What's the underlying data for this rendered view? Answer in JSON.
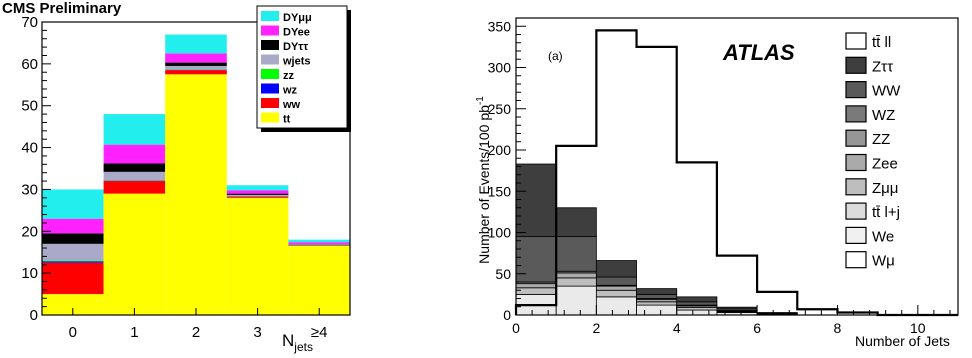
{
  "chart_data": [
    {
      "type": "bar",
      "stacked": true,
      "title": "CMS Preliminary",
      "xlabel": "N_jets",
      "xlabel_main": "N",
      "xlabel_sub": "jets",
      "ylabel": "",
      "ylim": [
        0,
        70
      ],
      "yticks": [
        0,
        10,
        20,
        30,
        40,
        50,
        60,
        70
      ],
      "categories": [
        "0",
        "1",
        "2",
        "3",
        "≥4"
      ],
      "series": [
        {
          "name": "tt",
          "color": "#ffff00",
          "values": [
            5,
            29,
            57.5,
            28,
            16.5
          ]
        },
        {
          "name": "WW",
          "color": "#ff0000",
          "values": [
            7.5,
            3,
            1,
            0.3,
            0.1
          ]
        },
        {
          "name": "WZ",
          "color": "#0000ff",
          "values": [
            0.3,
            0.1,
            0.1,
            0.05,
            0.05
          ]
        },
        {
          "name": "ZZ",
          "color": "#00ff00",
          "values": [
            0.2,
            0.1,
            0.1,
            0.05,
            0.05
          ]
        },
        {
          "name": "wjets",
          "color": "#aaaac8",
          "values": [
            4,
            2,
            0.8,
            0.3,
            0.2
          ]
        },
        {
          "name": "DYττ",
          "color": "#000000",
          "values": [
            2.5,
            2,
            0.8,
            0.3,
            0.1
          ]
        },
        {
          "name": "DYee",
          "color": "#ff22ff",
          "values": [
            3.5,
            4.5,
            2.2,
            0.8,
            0.4
          ]
        },
        {
          "name": "DYμμ",
          "color": "#22eeee",
          "values": [
            7,
            7.3,
            4.5,
            1.2,
            0.6
          ]
        }
      ],
      "legend": {
        "placement": "top-right",
        "entries": [
          {
            "label": "DYμμ",
            "color": "#22eeee"
          },
          {
            "label": "DYee",
            "color": "#ff22ff"
          },
          {
            "label": "DYττ",
            "color": "#000000"
          },
          {
            "label": "wjets",
            "color": "#aaaac8"
          },
          {
            "label": "zz",
            "color": "#00ff00"
          },
          {
            "label": "wz",
            "color": "#0000ff"
          },
          {
            "label": "ww",
            "color": "#ff0000"
          },
          {
            "label": "tt",
            "color": "#ffff00"
          }
        ]
      },
      "grid": false
    },
    {
      "type": "bar",
      "stacked": true,
      "title": "",
      "panel_label": "(a)",
      "experiment_label": "ATLAS",
      "xlabel": "Number of Jets",
      "ylabel": "Number of Events/100 pb⁻¹",
      "ylabel_main": "Number of Events/100 pb",
      "ylabel_sup": "-1",
      "xlim": [
        0,
        11
      ],
      "ylim": [
        0,
        360
      ],
      "xticks": [
        0,
        2,
        4,
        6,
        8,
        10
      ],
      "yticks": [
        0,
        50,
        100,
        150,
        200,
        250,
        300,
        350
      ],
      "bin_edges": [
        0,
        1,
        2,
        3,
        4,
        5,
        6,
        7,
        8,
        9,
        10,
        11
      ],
      "signal_series": {
        "name": "tt̄ ll",
        "values": [
          12,
          205,
          345,
          325,
          185,
          72,
          28,
          7,
          3,
          0,
          0
        ]
      },
      "background_series": [
        {
          "name": "tt̄ l+j",
          "color": "#eaeaea",
          "values": [
            25,
            35,
            22,
            12,
            6,
            3,
            1,
            0,
            0,
            0,
            0
          ]
        },
        {
          "name": "Zμμ",
          "color": "#bebebe",
          "values": [
            8,
            10,
            8,
            4,
            3,
            1,
            0,
            0,
            0,
            0,
            0
          ]
        },
        {
          "name": "Zee",
          "color": "#aaaaaa",
          "values": [
            5,
            6,
            5,
            3,
            2,
            1,
            0,
            0,
            0,
            0,
            0
          ]
        },
        {
          "name": "WZ",
          "color": "#7a7a7a",
          "values": [
            2,
            2,
            1,
            1,
            1,
            0.5,
            0,
            0,
            0,
            0,
            0
          ]
        },
        {
          "name": "WW",
          "color": "#5a5a5a",
          "values": [
            55,
            42,
            10,
            5,
            4,
            2,
            1,
            0,
            0,
            0,
            0
          ]
        },
        {
          "name": "Zττ",
          "color": "#3e3e3e",
          "values": [
            88,
            35,
            20,
            7,
            6,
            2,
            1,
            0,
            0,
            0,
            0
          ]
        }
      ],
      "legend": {
        "placement": "right",
        "entries": [
          {
            "label": "tt̄ ll",
            "color": "#ffffff"
          },
          {
            "label": "Zττ",
            "color": "#3e3e3e"
          },
          {
            "label": "WW",
            "color": "#5a5a5a"
          },
          {
            "label": "WZ",
            "color": "#7a7a7a"
          },
          {
            "label": "ZZ",
            "color": "#969696"
          },
          {
            "label": "Zee",
            "color": "#aaaaaa"
          },
          {
            "label": "Zμμ",
            "color": "#bebebe"
          },
          {
            "label": "tt̄ l+j",
            "color": "#dcdcdc"
          },
          {
            "label": "We",
            "color": "#f0f0f0"
          },
          {
            "label": "Wμ",
            "color": "#ffffff"
          }
        ]
      },
      "grid": false
    }
  ]
}
